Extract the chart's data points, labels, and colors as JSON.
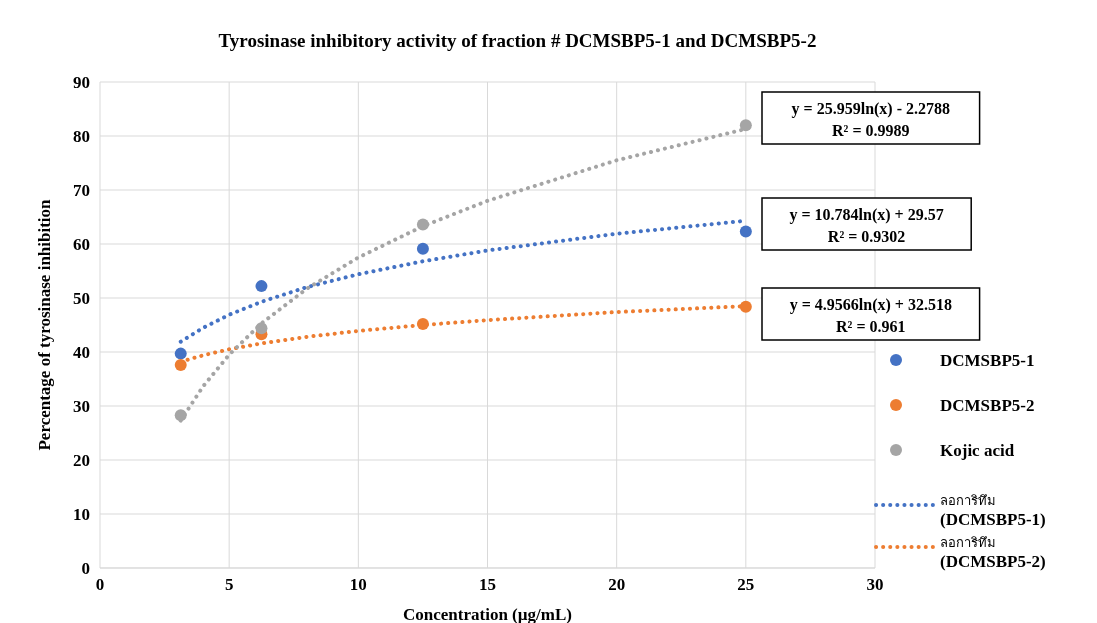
{
  "chart_data": {
    "type": "scatter",
    "title": "Tyrosinase inhibitory activity of fraction # DCMSBP5-1 and DCMSBP5-2",
    "xlabel": "Concentration (µg/mL)",
    "ylabel": "Percentage of tyrosinase inhibition",
    "xlim": [
      0,
      30
    ],
    "xticks": [
      0,
      5,
      10,
      15,
      20,
      25,
      30
    ],
    "ylim": [
      0,
      90
    ],
    "yticks": [
      0,
      10,
      20,
      30,
      40,
      50,
      60,
      70,
      80,
      90
    ],
    "grid": true,
    "legend": "right",
    "marker": "circle",
    "series": [
      {
        "name": "DCMSBP5-1",
        "color": "#4472c4",
        "x": [
          3.125,
          6.25,
          12.5,
          25
        ],
        "values": [
          39.7,
          52.2,
          59.1,
          62.3
        ]
      },
      {
        "name": "DCMSBP5-2",
        "color": "#ed7d31",
        "x": [
          3.125,
          6.25,
          12.5,
          25
        ],
        "values": [
          37.6,
          43.3,
          45.2,
          48.4
        ]
      },
      {
        "name": "Kojic acid",
        "color": "#a5a5a5",
        "x": [
          3.125,
          6.25,
          12.5,
          25
        ],
        "values": [
          28.3,
          44.4,
          63.6,
          82.0
        ]
      },
      {
        "name": "ลอการิทึม (DCMSBP5-1)",
        "type": "line",
        "marker": "none",
        "line_style": "dotted",
        "color": "#4472c4",
        "x": [
          3.125,
          4,
          5,
          6.25,
          8,
          10,
          12.5,
          15,
          20,
          25
        ],
        "values": [
          41.9,
          44.5,
          46.9,
          49.3,
          52.0,
          54.4,
          56.8,
          58.8,
          61.9,
          64.3
        ]
      },
      {
        "name": "ลอการิทึม (DCMSBP5-2)",
        "type": "line",
        "marker": "none",
        "line_style": "dotted",
        "color": "#ed7d31",
        "x": [
          3.125,
          4,
          5,
          6.25,
          8,
          10,
          12.5,
          15,
          20,
          25
        ],
        "values": [
          38.2,
          39.4,
          40.5,
          41.6,
          42.8,
          43.9,
          45.0,
          45.9,
          47.4,
          48.5
        ]
      },
      {
        "type": "line",
        "marker": "none",
        "line_style": "dotted",
        "color": "#a5a5a5",
        "x": [
          3.125,
          4,
          5,
          6.25,
          8,
          10,
          12.5,
          15,
          20,
          25
        ],
        "values": [
          27.3,
          33.7,
          39.5,
          45.3,
          51.7,
          57.5,
          63.3,
          68.0,
          75.5,
          81.3
        ]
      }
    ],
    "annotations": [
      "y = 25.959ln(x) - 2.2788\nR² = 0.9989",
      "y = 10.784ln(x) + 29.57\nR² = 0.9302",
      "y = 4.9566ln(x) + 32.518\nR² = 0.961"
    ]
  }
}
